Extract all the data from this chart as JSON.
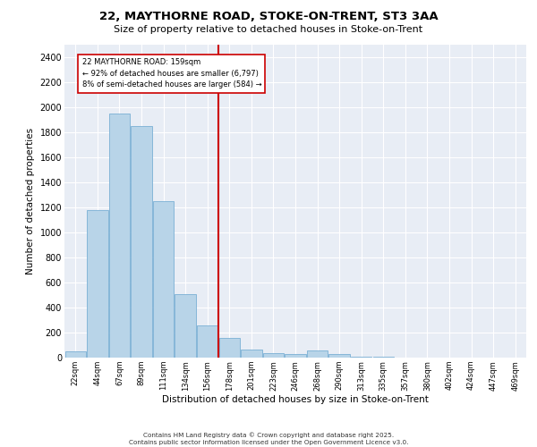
{
  "title1": "22, MAYTHORNE ROAD, STOKE-ON-TRENT, ST3 3AA",
  "title2": "Size of property relative to detached houses in Stoke-on-Trent",
  "xlabel": "Distribution of detached houses by size in Stoke-on-Trent",
  "ylabel": "Number of detached properties",
  "bins": [
    "22sqm",
    "44sqm",
    "67sqm",
    "89sqm",
    "111sqm",
    "134sqm",
    "156sqm",
    "178sqm",
    "201sqm",
    "223sqm",
    "246sqm",
    "268sqm",
    "290sqm",
    "313sqm",
    "335sqm",
    "357sqm",
    "380sqm",
    "402sqm",
    "424sqm",
    "447sqm",
    "469sqm"
  ],
  "values": [
    50,
    1180,
    1950,
    1850,
    1250,
    510,
    260,
    160,
    65,
    35,
    30,
    55,
    30,
    10,
    5,
    3,
    2,
    1,
    0,
    0,
    0
  ],
  "bar_color": "#b8d4e8",
  "bar_edge_color": "#7aafd4",
  "vline_color": "#cc0000",
  "annotation_text": "22 MAYTHORNE ROAD: 159sqm\n← 92% of detached houses are smaller (6,797)\n8% of semi-detached houses are larger (584) →",
  "annotation_box_color": "white",
  "annotation_box_edge": "#cc0000",
  "ylim": [
    0,
    2500
  ],
  "yticks": [
    0,
    200,
    400,
    600,
    800,
    1000,
    1200,
    1400,
    1600,
    1800,
    2000,
    2200,
    2400
  ],
  "bg_color": "#e8edf5",
  "grid_color": "white",
  "footer1": "Contains HM Land Registry data © Crown copyright and database right 2025.",
  "footer2": "Contains public sector information licensed under the Open Government Licence v3.0."
}
